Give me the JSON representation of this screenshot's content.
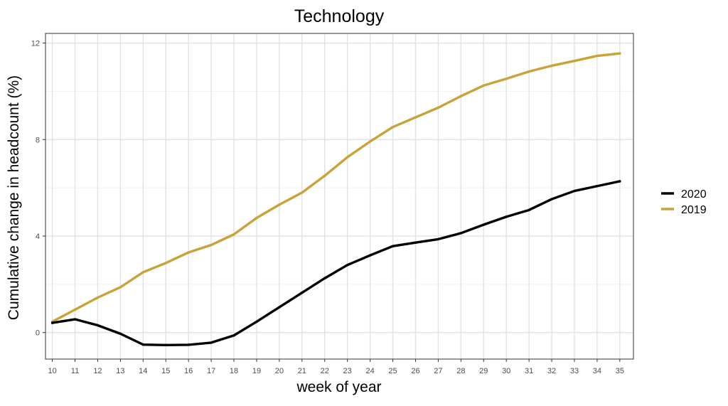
{
  "chart_data": {
    "type": "line",
    "title": "Technology",
    "xlabel": "week of year",
    "ylabel": "Cumulative change in headcount (%)",
    "x": [
      10,
      11,
      12,
      13,
      14,
      15,
      16,
      17,
      18,
      19,
      20,
      21,
      22,
      23,
      24,
      25,
      26,
      27,
      28,
      29,
      30,
      31,
      32,
      33,
      34,
      35
    ],
    "xlim": [
      9.7,
      35.6
    ],
    "ylim": [
      -1.1,
      12.4
    ],
    "xticks": [
      "10",
      "11",
      "12",
      "13",
      "14",
      "15",
      "16",
      "17",
      "18",
      "19",
      "20",
      "21",
      "22",
      "23",
      "24",
      "25",
      "26",
      "27",
      "28",
      "29",
      "30",
      "31",
      "32",
      "33",
      "34",
      "35"
    ],
    "yticks": [
      {
        "value": 0,
        "label": "0"
      },
      {
        "value": 4,
        "label": "4"
      },
      {
        "value": 8,
        "label": "8"
      },
      {
        "value": 12,
        "label": "12"
      }
    ],
    "grid": true,
    "legend_position": "right",
    "series": [
      {
        "name": "2020",
        "color": "#000000",
        "values": [
          0.4,
          0.55,
          0.3,
          -0.05,
          -0.5,
          -0.52,
          -0.51,
          -0.42,
          -0.12,
          0.45,
          1.05,
          1.65,
          2.25,
          2.8,
          3.2,
          3.58,
          3.73,
          3.87,
          4.12,
          4.47,
          4.8,
          5.08,
          5.53,
          5.87,
          6.07,
          6.27
        ]
      },
      {
        "name": "2019",
        "color": "#C9A23A",
        "values": [
          0.45,
          0.95,
          1.45,
          1.88,
          2.5,
          2.88,
          3.32,
          3.63,
          4.07,
          4.75,
          5.3,
          5.8,
          6.5,
          7.27,
          7.92,
          8.52,
          8.92,
          9.32,
          9.8,
          10.24,
          10.52,
          10.82,
          11.06,
          11.26,
          11.47,
          11.57
        ]
      }
    ]
  }
}
